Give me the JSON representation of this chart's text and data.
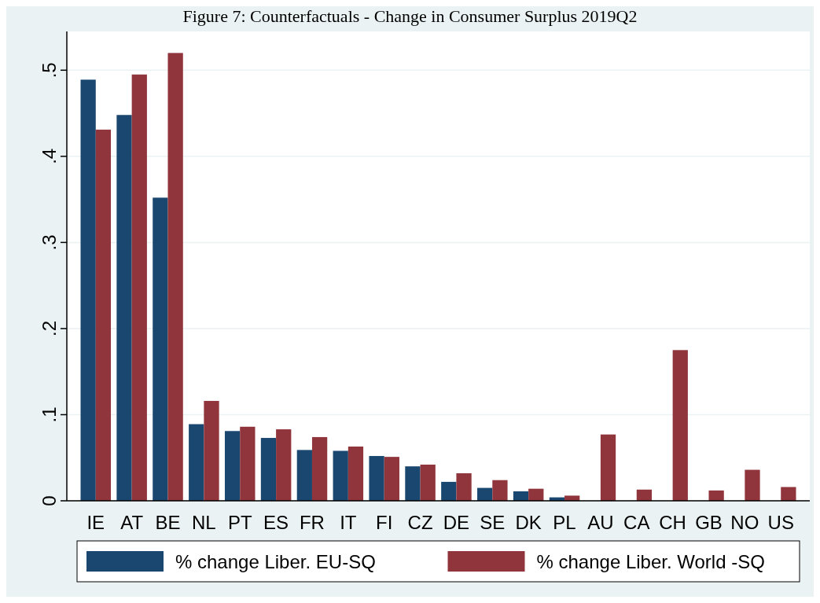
{
  "chart_data": {
    "type": "bar",
    "title": "Figure 7: Counterfactuals - Change in Consumer Surplus 2019Q2",
    "categories": [
      "IE",
      "AT",
      "BE",
      "NL",
      "PT",
      "ES",
      "FR",
      "IT",
      "FI",
      "CZ",
      "DE",
      "SE",
      "DK",
      "PL",
      "AU",
      "CA",
      "CH",
      "GB",
      "NO",
      "US"
    ],
    "series": [
      {
        "name": "% change Liber. EU-SQ",
        "color": "#1a476f",
        "values": [
          0.489,
          0.448,
          0.352,
          0.089,
          0.081,
          0.073,
          0.059,
          0.058,
          0.052,
          0.04,
          0.022,
          0.015,
          0.011,
          0.004,
          null,
          null,
          null,
          null,
          null,
          null
        ]
      },
      {
        "name": "% change Liber. World -SQ",
        "color": "#90353b",
        "values": [
          0.431,
          0.495,
          0.52,
          0.116,
          0.086,
          0.083,
          0.074,
          0.063,
          0.051,
          0.042,
          0.032,
          0.024,
          0.014,
          0.006,
          0.077,
          0.013,
          0.175,
          0.012,
          0.036,
          0.016
        ]
      }
    ],
    "ylim": [
      0,
      0.545
    ],
    "yticks": [
      {
        "value": 0,
        "label": "0"
      },
      {
        "value": 0.1,
        "label": ".1"
      },
      {
        "value": 0.2,
        "label": ".2"
      },
      {
        "value": 0.3,
        "label": ".3"
      },
      {
        "value": 0.4,
        "label": ".4"
      },
      {
        "value": 0.5,
        "label": ".5"
      }
    ],
    "grid": "y",
    "legend": "bottom"
  }
}
